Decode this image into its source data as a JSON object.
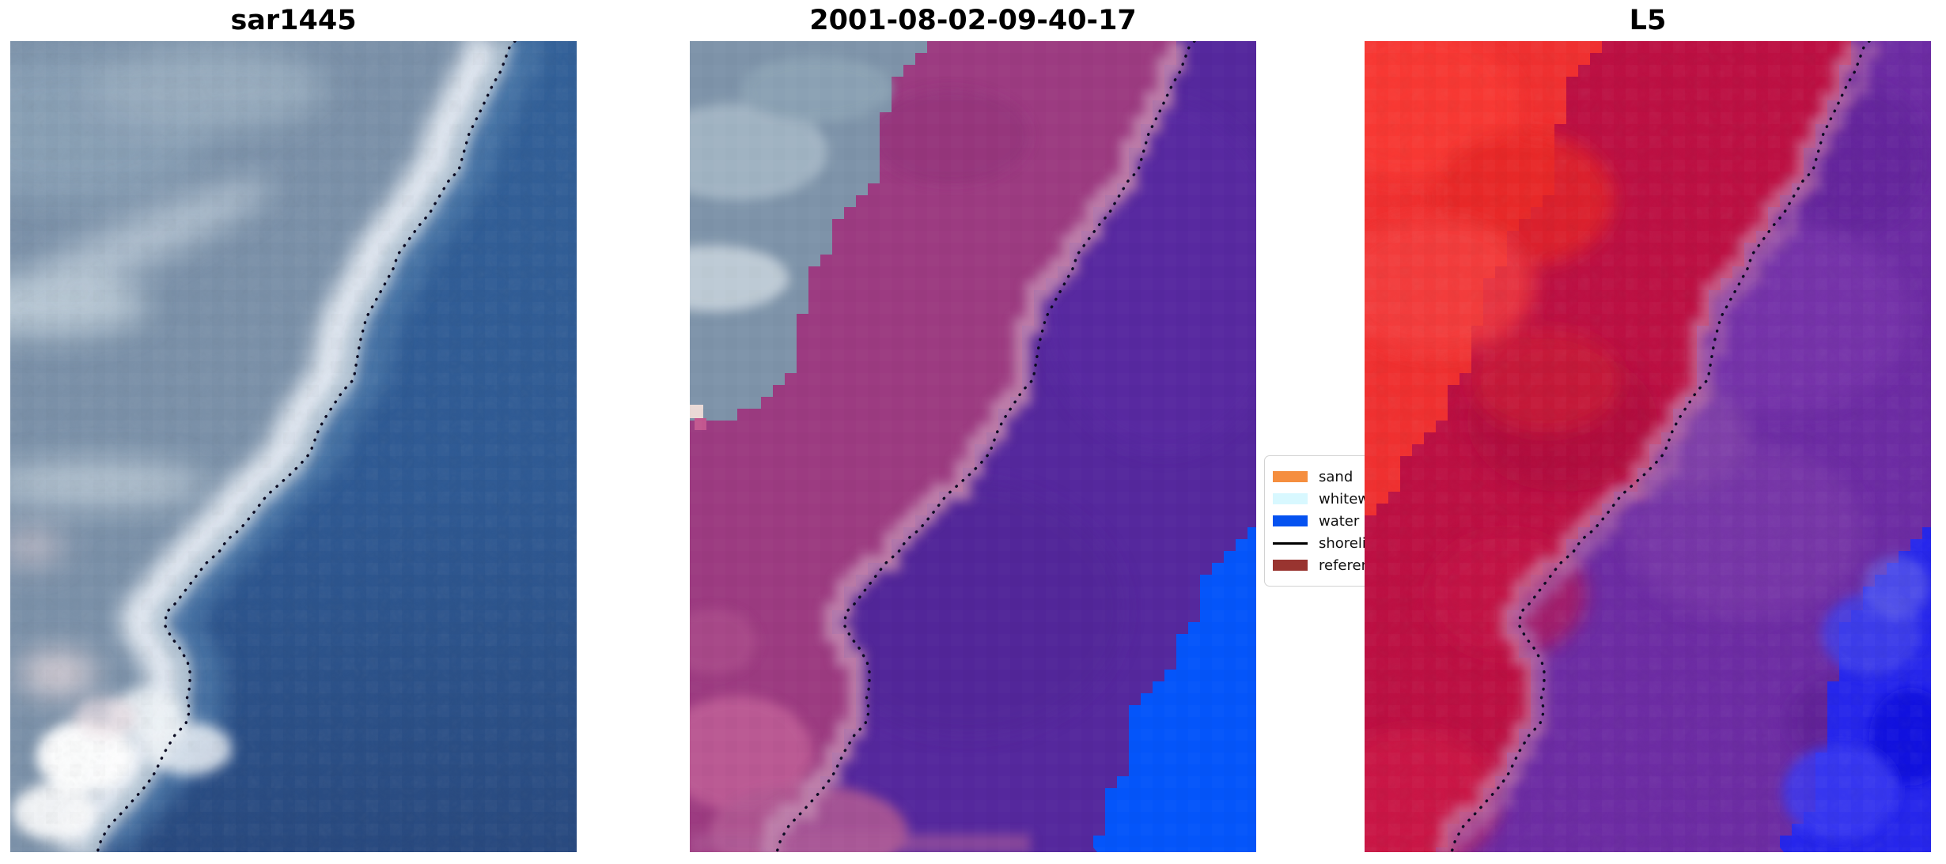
{
  "panels": [
    {
      "title": "sar1445"
    },
    {
      "title": "2001-08-02-09-40-17"
    },
    {
      "title": "L5"
    }
  ],
  "legend": {
    "items": [
      {
        "label": "sand",
        "swatch": "#f58e3f",
        "kind": "patch"
      },
      {
        "label": "whitew",
        "swatch": "#d8f8ff",
        "kind": "patch"
      },
      {
        "label": "water",
        "swatch": "#0552f0",
        "kind": "patch"
      },
      {
        "label": "shoreli",
        "swatch": "#000000",
        "kind": "line"
      },
      {
        "label": "referen",
        "swatch": "#993430",
        "kind": "patch"
      }
    ]
  },
  "colors": {
    "background": "#ffffff",
    "title_text": "#000000",
    "shoreline_dots": "#0b0b22",
    "sar_water_deep": "#294a80",
    "sar_water": "#326199",
    "sar_land_slate": "#7b91a9",
    "classified_purple": "#55289d",
    "classified_magenta": "#9c3b81",
    "classified_gray": "#7e93a9",
    "classified_blue_patch": "#0455fa",
    "l5_bright_red": "#f03030",
    "l5_crimson": "#bd1043",
    "l5_purple": "#6d2ca4",
    "l5_blue_patch": "#2626ec"
  },
  "chart_data": {
    "type": "image-panels",
    "title": "",
    "panels": [
      {
        "title": "sar1445",
        "content": "true-color satellite crop: slate-blue land with white surf band upper-left, deep blue sea right, bright white patches lower-left, black dotted shoreline running from top (x~88% width) down to bottom-left (x~15%)"
      },
      {
        "title": "2001-08-02-09-40-17",
        "content": "classification overlay: unclassified gray-blue wedge top-left, magenta land band, flat purple sea, bright blue water patch in bottom-right corner, stair-stepped class boundaries, black dotted shoreline"
      },
      {
        "title": "L5",
        "content": "L5 overlay: bright red wedge top-left, crimson land band, blocky purple sea, blue-violet water patch bottom-right, stair-stepped boundaries, black dotted shoreline"
      }
    ],
    "legend": {
      "position": "between panel 2 and panel 3, partially covered by panel 3",
      "entries": [
        {
          "label": "sand",
          "color": "#f58e3f"
        },
        {
          "label": "whitew",
          "color": "#d8f8ff"
        },
        {
          "label": "water",
          "color": "#0552f0"
        },
        {
          "label": "shoreli",
          "color": "#000000"
        },
        {
          "label": "referen",
          "color": "#993430"
        }
      ]
    }
  }
}
